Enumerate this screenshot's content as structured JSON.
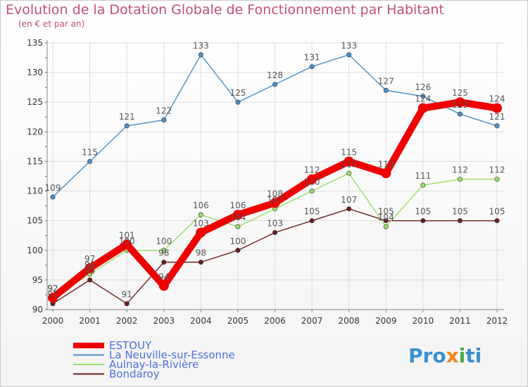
{
  "chart_data": {
    "type": "line",
    "title": "Evolution de la Dotation Globale de Fonctionnement par Habitant",
    "subtitle": "(en € et par an)",
    "xlabel": "",
    "ylabel": "",
    "ylim": [
      90,
      135
    ],
    "yticks": [
      90,
      95,
      100,
      105,
      110,
      115,
      120,
      125,
      130,
      135
    ],
    "grid": true,
    "legend_position": "bottom-left",
    "categories": [
      "2000",
      "2001",
      "2002",
      "2003",
      "2004",
      "2005",
      "2006",
      "2007",
      "2008",
      "2009",
      "2010",
      "2011",
      "2012"
    ],
    "series": [
      {
        "name": "ESTOUY",
        "color": "#ee0000",
        "values": [
          92,
          97,
          101,
          94,
          103,
          106,
          108,
          112,
          115,
          113,
          124,
          125,
          124
        ]
      },
      {
        "name": "La Neuville-sur-Essonne",
        "color": "#4a90c8",
        "values": [
          109,
          115,
          121,
          122,
          133,
          125,
          128,
          131,
          133,
          127,
          126,
          123,
          121
        ]
      },
      {
        "name": "Aulnay-la-Rivière",
        "color": "#99dd66",
        "values": [
          92,
          96,
          100,
          100,
          106,
          104,
          107,
          110,
          113,
          104,
          111,
          112,
          112
        ]
      },
      {
        "name": "Bondaroy",
        "color": "#6b1f1f",
        "values": [
          91,
          95,
          91,
          98,
          98,
          100,
          103,
          105,
          107,
          105,
          105,
          105,
          105
        ]
      }
    ]
  },
  "logo": {
    "parts": [
      "Pro",
      "x",
      "i",
      "ti"
    ]
  }
}
